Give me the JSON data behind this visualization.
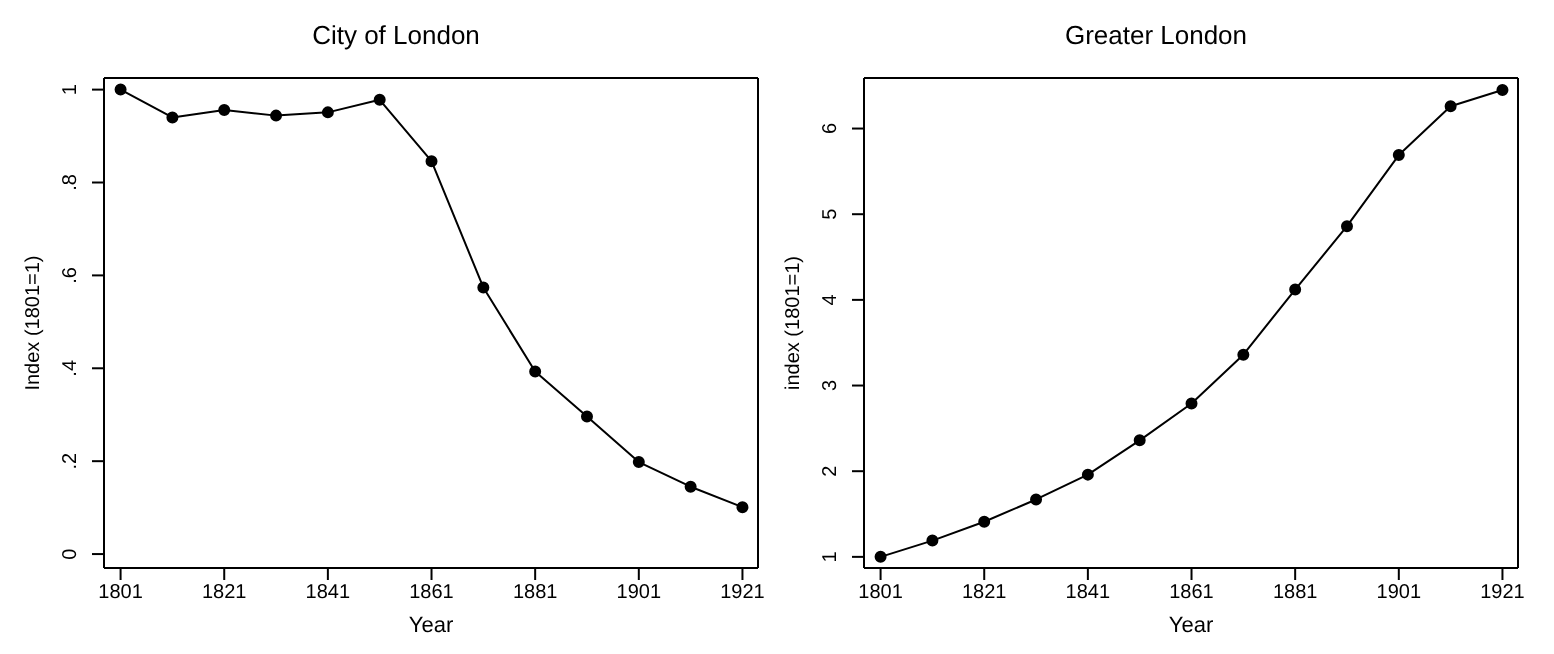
{
  "chart_data": [
    {
      "type": "line",
      "title": "City of London",
      "xlabel": "Year",
      "ylabel": "Index (1801=1)",
      "x": [
        1801,
        1811,
        1821,
        1831,
        1841,
        1851,
        1861,
        1871,
        1881,
        1891,
        1901,
        1911,
        1921
      ],
      "series": [
        {
          "color": "#000000",
          "values": [
            1,
            0.94,
            0.956,
            0.944,
            0.951,
            0.978,
            0.846,
            0.574,
            0.393,
            0.296,
            0.198,
            0.145,
            0.101
          ]
        }
      ],
      "xlim": [
        1797.8,
        1924
      ],
      "xticks": [
        1801,
        1821,
        1841,
        1861,
        1881,
        1901,
        1921
      ],
      "ylim": [
        -0.03,
        1.025
      ],
      "yticks": [
        0,
        {
          "value": 0.2,
          "label": ".2"
        },
        {
          "value": 0.4,
          "label": ".4"
        },
        {
          "value": 0.6,
          "label": ".6"
        },
        {
          "value": 0.8,
          "label": ".8"
        },
        1
      ],
      "grid": false,
      "legend": false,
      "marker": "circle",
      "line_style": "solid"
    },
    {
      "type": "line",
      "title": "Greater London",
      "xlabel": "Year",
      "ylabel": "index (1801=1)",
      "x": [
        1801,
        1811,
        1821,
        1831,
        1841,
        1851,
        1861,
        1871,
        1881,
        1891,
        1901,
        1911,
        1921
      ],
      "series": [
        {
          "color": "#000000",
          "values": [
            1,
            1.19,
            1.41,
            1.67,
            1.96,
            2.36,
            2.79,
            3.36,
            4.12,
            4.86,
            5.69,
            6.26,
            6.45
          ]
        }
      ],
      "xlim": [
        1797.8,
        1924
      ],
      "xticks": [
        1801,
        1821,
        1841,
        1861,
        1881,
        1901,
        1921
      ],
      "ylim": [
        0.87,
        6.59
      ],
      "yticks": [
        1,
        2,
        3,
        4,
        5,
        6
      ],
      "grid": false,
      "legend": false,
      "marker": "circle",
      "line_style": "solid"
    }
  ]
}
